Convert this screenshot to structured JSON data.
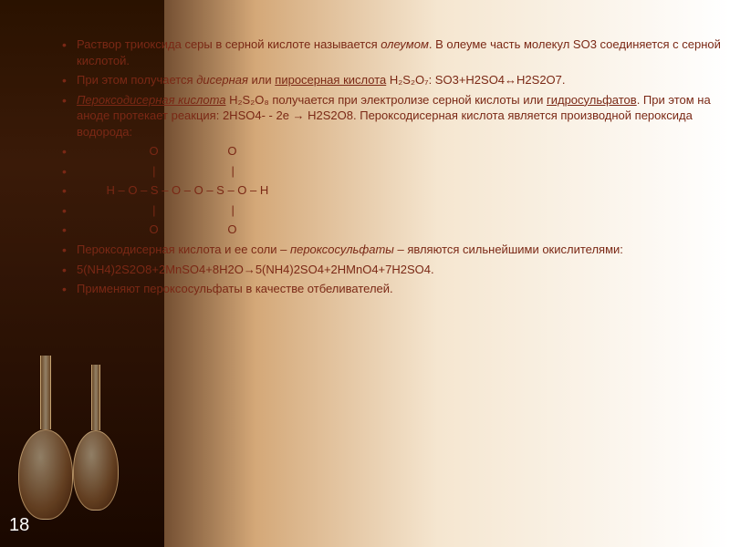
{
  "slide": {
    "text_color": "#7a2815",
    "bg_gradient": [
      "#1a0800",
      "#3a1a08",
      "#d4a878",
      "#f5e6d0",
      "#ffffff"
    ],
    "page_number": "18",
    "bullets": {
      "b1_pre": "Раствор триоксида серы в серной кислоте называется ",
      "b1_oleum": "олеумом",
      "b1_post": ". В олеуме часть молекул SO3 соединяется с серной кислотой.",
      "b2_pre": "При этом получается ",
      "b2_dis": "дисерная",
      "b2_mid": " или ",
      "b2_pyro": "пиросерная кислота",
      "b2_post": " H₂S₂O₇: SO3+H2SO4↔H2S2O7.",
      "b3_name": "Пероксодисерная кислота",
      "b3_mid": " H₂S₂O₈ получается при электролизе серной кислоты или ",
      "b3_hydro": "гидросульфатов",
      "b3_post": ". При этом на аноде протекает реакция: 2HSO4- - 2e → H2S2O8. Пероксодисерная кислота является производной пероксида водорода:",
      "s1": "                      O                     O",
      "s2": "                       |                       |",
      "s3": "         H – O – S – O – O – S – O – H",
      "s4": "                       |                       |",
      "s5": "                      O                     O",
      "b4_pre": "Пероксодисерная кислота и ее соли – ",
      "b4_salt": "пероксосульфаты",
      "b4_post": " – являются сильнейшими окислителями:",
      "b5": "5(NH4)2S2O8+2MnSO4+8H2O→5(NH4)2SO4+2HMnO4+7H2SO4.",
      "b6": "Применяют пероксосульфаты в качестве отбеливателей."
    }
  }
}
